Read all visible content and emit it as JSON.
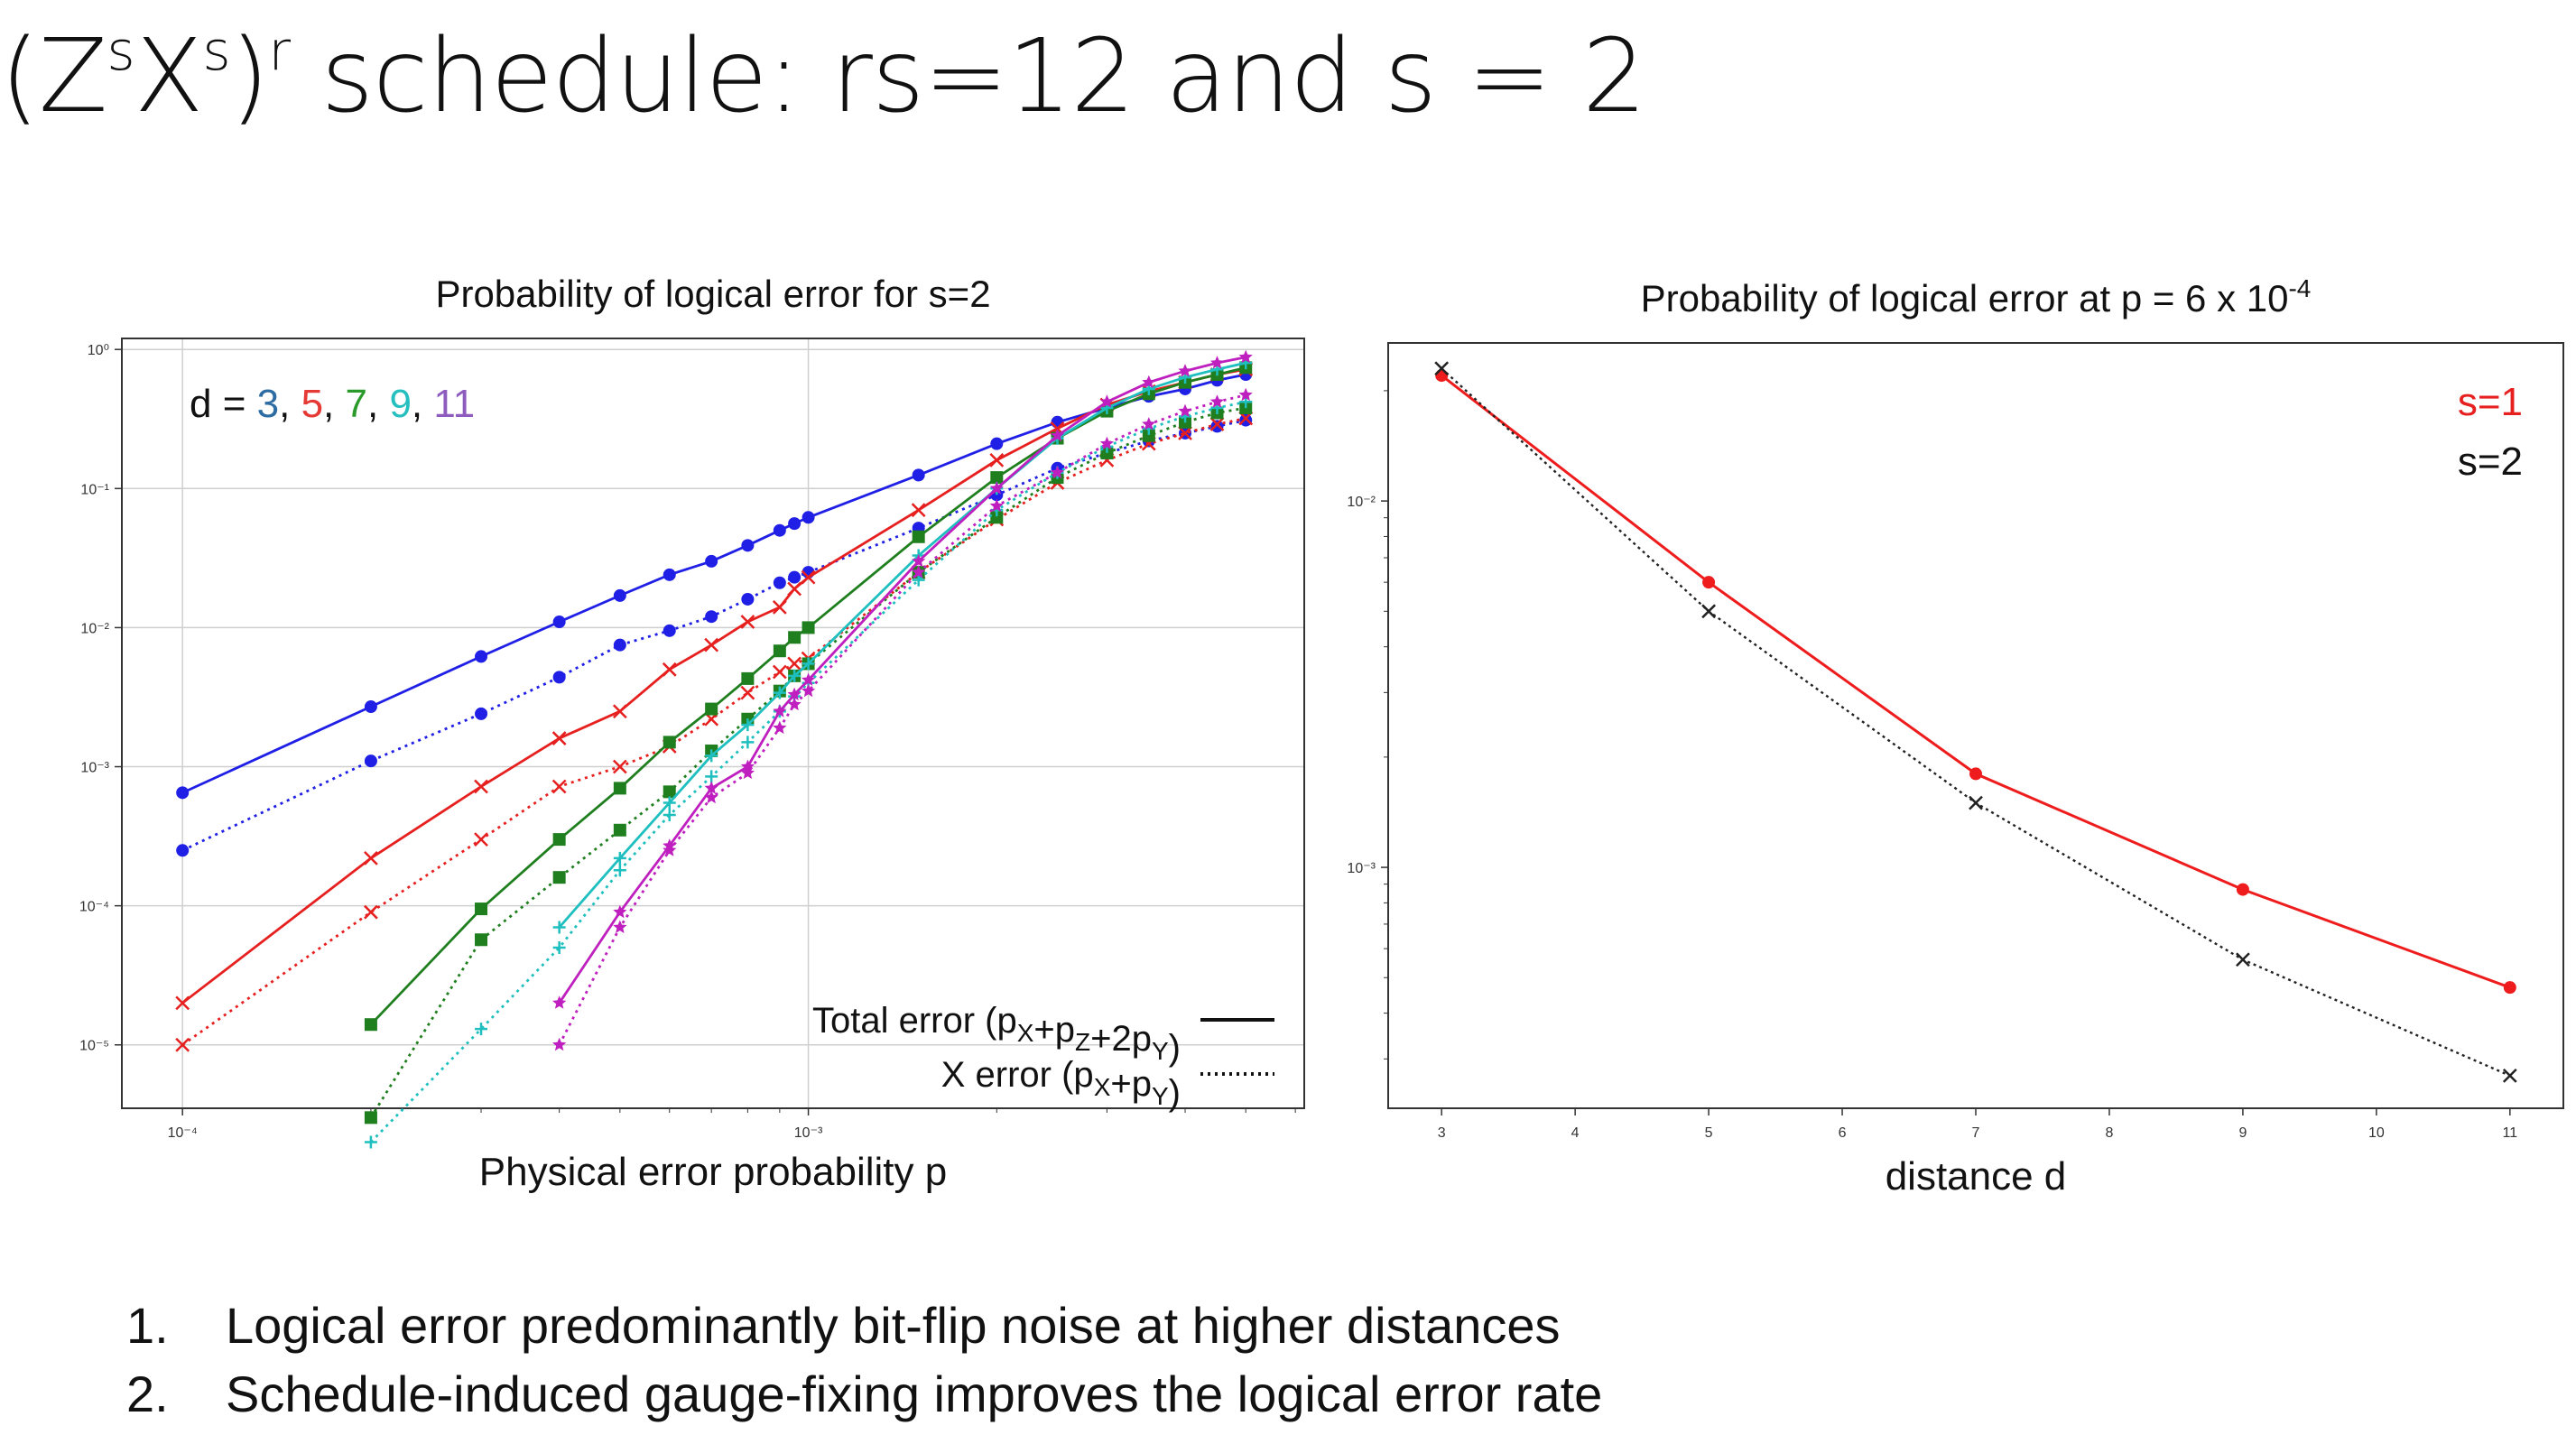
{
  "slide": {
    "title_pre": "(Z",
    "title_s1": "s",
    "title_x": "X",
    "title_s2": "s",
    "title_close": ")",
    "title_r": "r",
    "title_post": " schedule: rs=12 and s = 2",
    "points": [
      {
        "num": "1.",
        "text": "Logical error predominantly bit-flip noise at higher distances"
      },
      {
        "num": "2.",
        "text": "Schedule-induced gauge-fixing improves the logical error rate"
      }
    ]
  },
  "chart_data": [
    {
      "type": "line",
      "title": "Probability of logical error for s=2",
      "xlabel": "Physical error probability p",
      "ylabel": "",
      "xscale": "log",
      "yscale": "log",
      "xlim": [
        8e-05,
        0.0062
      ],
      "ylim": [
        3.5e-06,
        1.2
      ],
      "grid": true,
      "xticks": [
        {
          "value": 0.0001,
          "label": "10⁻⁴"
        },
        {
          "value": 0.001,
          "label": "10⁻³"
        }
      ],
      "yticks": [
        {
          "value": 1,
          "label": "10⁰"
        },
        {
          "value": 0.1,
          "label": "10⁻¹"
        },
        {
          "value": 0.01,
          "label": "10⁻²"
        },
        {
          "value": 0.001,
          "label": "10⁻³"
        },
        {
          "value": 0.0001,
          "label": "10⁻⁴"
        },
        {
          "value": 1e-05,
          "label": "10⁻⁵"
        }
      ],
      "annotation": {
        "prefix": "d = ",
        "items": [
          {
            "text": "3",
            "color": "#2e6da4"
          },
          {
            "text": "5",
            "color": "#e53935"
          },
          {
            "text": "7",
            "color": "#2a9a2a"
          },
          {
            "text": "9",
            "color": "#26bfbf"
          },
          {
            "text": "11",
            "color": "#8e5bbf"
          }
        ],
        "separator": ", "
      },
      "legend": {
        "position": "lower-right",
        "entries": [
          {
            "label": "Total error (p",
            "sub1": "X",
            "mid1": "+p",
            "sub2": "Z",
            "mid2": "+2p",
            "sub3": "Y",
            "end": ")",
            "style": "solid"
          },
          {
            "label": "X error (p",
            "sub1": "X",
            "mid1": "+p",
            "sub2": "Y",
            "mid2": "",
            "sub3": "",
            "end": ")",
            "style": "dotted"
          }
        ]
      },
      "series": [
        {
          "distance": 3,
          "error": "total",
          "color": "#1f1fe6",
          "marker": "circle",
          "style": "solid",
          "x": [
            0.0001,
            0.0002,
            0.0003,
            0.0004,
            0.0005,
            0.0006,
            0.0007,
            0.0008,
            0.0009,
            0.00095,
            0.001,
            0.0015,
            0.002,
            0.0025,
            0.003,
            0.0035,
            0.004,
            0.0045,
            0.005
          ],
          "y": [
            0.00065,
            0.0027,
            0.0062,
            0.011,
            0.017,
            0.024,
            0.03,
            0.039,
            0.05,
            0.056,
            0.062,
            0.125,
            0.21,
            0.3,
            0.38,
            0.46,
            0.52,
            0.6,
            0.66
          ]
        },
        {
          "distance": 3,
          "error": "x",
          "color": "#1f1fe6",
          "marker": "circle",
          "style": "dotted",
          "x": [
            0.0001,
            0.0002,
            0.0003,
            0.0004,
            0.0005,
            0.0006,
            0.0007,
            0.0008,
            0.0009,
            0.00095,
            0.001,
            0.0015,
            0.002,
            0.0025,
            0.003,
            0.0035,
            0.004,
            0.0045,
            0.005
          ],
          "y": [
            0.00025,
            0.0011,
            0.0024,
            0.0044,
            0.0075,
            0.0095,
            0.012,
            0.016,
            0.021,
            0.023,
            0.025,
            0.052,
            0.09,
            0.14,
            0.18,
            0.22,
            0.25,
            0.28,
            0.31
          ]
        },
        {
          "distance": 5,
          "error": "total",
          "color": "#e61f1f",
          "marker": "x",
          "style": "solid",
          "x": [
            0.0001,
            0.0002,
            0.0003,
            0.0004,
            0.0005,
            0.0006,
            0.0007,
            0.0008,
            0.0009,
            0.00095,
            0.001,
            0.0015,
            0.002,
            0.0025,
            0.003,
            0.0035,
            0.004,
            0.0045,
            0.005
          ],
          "y": [
            2e-05,
            0.00022,
            0.00072,
            0.0016,
            0.0025,
            0.005,
            0.0075,
            0.011,
            0.014,
            0.019,
            0.023,
            0.07,
            0.16,
            0.27,
            0.4,
            0.5,
            0.58,
            0.66,
            0.72
          ]
        },
        {
          "distance": 5,
          "error": "x",
          "color": "#e61f1f",
          "marker": "x",
          "style": "dotted",
          "x": [
            0.0001,
            0.0002,
            0.0003,
            0.0004,
            0.0005,
            0.0006,
            0.0007,
            0.0008,
            0.0009,
            0.00095,
            0.001,
            0.0015,
            0.002,
            0.0025,
            0.003,
            0.0035,
            0.004,
            0.0045,
            0.005
          ],
          "y": [
            1e-05,
            9e-05,
            0.0003,
            0.00072,
            0.001,
            0.0014,
            0.0022,
            0.0034,
            0.0048,
            0.0055,
            0.006,
            0.025,
            0.06,
            0.11,
            0.16,
            0.21,
            0.25,
            0.29,
            0.32
          ]
        },
        {
          "distance": 7,
          "error": "total",
          "color": "#1f7f1f",
          "marker": "square",
          "style": "solid",
          "x": [
            0.0002,
            0.0003,
            0.0004,
            0.0005,
            0.0006,
            0.0007,
            0.0008,
            0.0009,
            0.00095,
            0.001,
            0.0015,
            0.002,
            0.0025,
            0.003,
            0.0035,
            0.004,
            0.0045,
            0.005
          ],
          "y": [
            1.4e-05,
            9.5e-05,
            0.0003,
            0.0007,
            0.0015,
            0.0026,
            0.0043,
            0.0068,
            0.0085,
            0.01,
            0.045,
            0.12,
            0.23,
            0.36,
            0.48,
            0.58,
            0.66,
            0.74
          ]
        },
        {
          "distance": 7,
          "error": "x",
          "color": "#1f7f1f",
          "marker": "square",
          "style": "dotted",
          "x": [
            0.0002,
            0.0003,
            0.0004,
            0.0005,
            0.0006,
            0.0007,
            0.0008,
            0.0009,
            0.00095,
            0.001,
            0.0015,
            0.002,
            0.0025,
            0.003,
            0.0035,
            0.004,
            0.0045,
            0.005
          ],
          "y": [
            3e-06,
            5.7e-05,
            0.00016,
            0.00035,
            0.00066,
            0.0013,
            0.0022,
            0.0035,
            0.0045,
            0.0055,
            0.025,
            0.062,
            0.12,
            0.18,
            0.24,
            0.3,
            0.35,
            0.38
          ]
        },
        {
          "distance": 9,
          "error": "total",
          "color": "#1fbfbf",
          "marker": "plus",
          "style": "solid",
          "x": [
            0.0004,
            0.0005,
            0.0006,
            0.0007,
            0.0008,
            0.0009,
            0.00095,
            0.001,
            0.0015,
            0.002,
            0.0025,
            0.003,
            0.0035,
            0.004,
            0.0045,
            0.005
          ],
          "y": [
            7e-05,
            0.00022,
            0.00055,
            0.0012,
            0.002,
            0.0034,
            0.0045,
            0.0055,
            0.033,
            0.1,
            0.23,
            0.38,
            0.52,
            0.63,
            0.72,
            0.8
          ]
        },
        {
          "distance": 9,
          "error": "x",
          "color": "#1fbfbf",
          "marker": "plus",
          "style": "dotted",
          "x": [
            0.0002,
            0.0003,
            0.0004,
            0.0005,
            0.0006,
            0.0007,
            0.0008,
            0.0009,
            0.00095,
            0.001,
            0.0015,
            0.002,
            0.0025,
            0.003,
            0.0035,
            0.004,
            0.0045,
            0.005
          ],
          "y": [
            2e-06,
            1.3e-05,
            5e-05,
            0.00018,
            0.00045,
            0.00085,
            0.0015,
            0.0025,
            0.0032,
            0.004,
            0.022,
            0.07,
            0.13,
            0.2,
            0.27,
            0.33,
            0.38,
            0.42
          ]
        },
        {
          "distance": 11,
          "error": "total",
          "color": "#bf1fbf",
          "marker": "star",
          "style": "solid",
          "x": [
            0.0004,
            0.0005,
            0.0006,
            0.0007,
            0.0008,
            0.0009,
            0.00095,
            0.001,
            0.0015,
            0.002,
            0.0025,
            0.003,
            0.0035,
            0.004,
            0.0045,
            0.005
          ],
          "y": [
            2e-05,
            9e-05,
            0.00027,
            0.0007,
            0.001,
            0.0025,
            0.0033,
            0.0042,
            0.03,
            0.1,
            0.24,
            0.42,
            0.58,
            0.7,
            0.8,
            0.88
          ]
        },
        {
          "distance": 11,
          "error": "x",
          "color": "#bf1fbf",
          "marker": "star",
          "style": "dotted",
          "x": [
            0.0004,
            0.0005,
            0.0006,
            0.0007,
            0.0008,
            0.0009,
            0.00095,
            0.001,
            0.0015,
            0.002,
            0.0025,
            0.003,
            0.0035,
            0.004,
            0.0045,
            0.005
          ],
          "y": [
            1e-05,
            7e-05,
            0.00025,
            0.0006,
            0.0009,
            0.0019,
            0.0028,
            0.0035,
            0.025,
            0.075,
            0.13,
            0.21,
            0.29,
            0.36,
            0.42,
            0.47
          ]
        }
      ]
    },
    {
      "type": "line",
      "title_main": "Probability of logical error at p = 6 x 10",
      "title_exp": "-4",
      "xlabel": "distance d",
      "ylabel": "",
      "xscale": "linear",
      "yscale": "log",
      "xlim": [
        2.6,
        11.4
      ],
      "ylim": [
        0.00022,
        0.027
      ],
      "grid": false,
      "xticks": [
        {
          "value": 3,
          "label": "3"
        },
        {
          "value": 4,
          "label": "4"
        },
        {
          "value": 5,
          "label": "5"
        },
        {
          "value": 6,
          "label": "6"
        },
        {
          "value": 7,
          "label": "7"
        },
        {
          "value": 8,
          "label": "8"
        },
        {
          "value": 9,
          "label": "9"
        },
        {
          "value": 10,
          "label": "10"
        },
        {
          "value": 11,
          "label": "11"
        }
      ],
      "yticks": [
        {
          "value": 0.01,
          "label": "10⁻²"
        },
        {
          "value": 0.001,
          "label": "10⁻³"
        }
      ],
      "legend": {
        "position": "upper-right",
        "entries": [
          {
            "label": "s=1",
            "color": "#e61f1f"
          },
          {
            "label": "s=2",
            "color": "#111111"
          }
        ]
      },
      "series": [
        {
          "name": "s=1",
          "color": "#ee1c1c",
          "marker": "circle",
          "style": "solid",
          "x": [
            3,
            5,
            7,
            9,
            11
          ],
          "y": [
            0.022,
            0.006,
            0.0018,
            0.00087,
            0.00047
          ]
        },
        {
          "name": "s=2",
          "color": "#222222",
          "marker": "x",
          "style": "dotted",
          "x": [
            3,
            5,
            7,
            9,
            11
          ],
          "y": [
            0.023,
            0.005,
            0.0015,
            0.00056,
            0.00027
          ]
        }
      ]
    }
  ]
}
